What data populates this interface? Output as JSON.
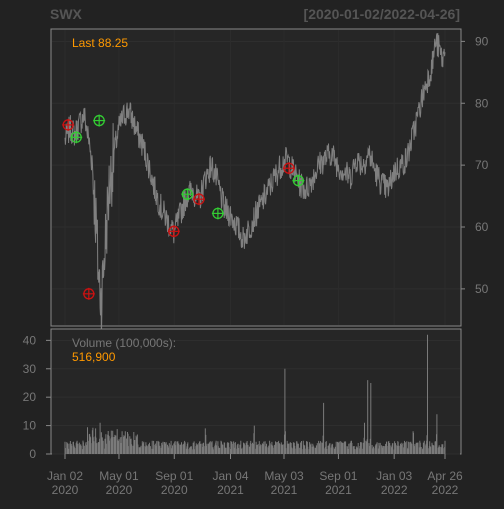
{
  "chart_data": {
    "type": "line",
    "title_left": "SWX",
    "title_right": "[2020-01-02/2022-04-26]",
    "price_panel": {
      "last_label": "Last 88.25",
      "ylim": [
        44,
        92
      ],
      "y_ticks": [
        50,
        60,
        70,
        80,
        90
      ],
      "series": [
        {
          "x": "2020-01-02",
          "y": 74
        },
        {
          "x": "2020-01-13",
          "y": 76
        },
        {
          "x": "2020-01-24",
          "y": 75
        },
        {
          "x": "2020-02-05",
          "y": 77
        },
        {
          "x": "2020-02-14",
          "y": 78
        },
        {
          "x": "2020-02-24",
          "y": 74
        },
        {
          "x": "2020-03-03",
          "y": 70
        },
        {
          "x": "2020-03-10",
          "y": 62
        },
        {
          "x": "2020-03-16",
          "y": 53
        },
        {
          "x": "2020-03-23",
          "y": 48
        },
        {
          "x": "2020-03-30",
          "y": 56
        },
        {
          "x": "2020-04-09",
          "y": 66
        },
        {
          "x": "2020-04-20",
          "y": 72
        },
        {
          "x": "2020-05-01",
          "y": 76
        },
        {
          "x": "2020-05-12",
          "y": 78
        },
        {
          "x": "2020-05-22",
          "y": 79
        },
        {
          "x": "2020-06-02",
          "y": 77
        },
        {
          "x": "2020-06-12",
          "y": 75
        },
        {
          "x": "2020-06-24",
          "y": 73
        },
        {
          "x": "2020-07-06",
          "y": 70
        },
        {
          "x": "2020-07-20",
          "y": 66
        },
        {
          "x": "2020-08-03",
          "y": 63
        },
        {
          "x": "2020-08-17",
          "y": 61
        },
        {
          "x": "2020-08-31",
          "y": 59
        },
        {
          "x": "2020-09-14",
          "y": 62
        },
        {
          "x": "2020-09-28",
          "y": 65
        },
        {
          "x": "2020-10-12",
          "y": 66
        },
        {
          "x": "2020-10-26",
          "y": 64
        },
        {
          "x": "2020-11-09",
          "y": 68
        },
        {
          "x": "2020-11-23",
          "y": 70
        },
        {
          "x": "2020-12-07",
          "y": 67
        },
        {
          "x": "2020-12-21",
          "y": 63
        },
        {
          "x": "2021-01-04",
          "y": 62
        },
        {
          "x": "2021-01-19",
          "y": 60
        },
        {
          "x": "2021-02-01",
          "y": 58
        },
        {
          "x": "2021-02-16",
          "y": 60
        },
        {
          "x": "2021-03-01",
          "y": 62
        },
        {
          "x": "2021-03-15",
          "y": 64
        },
        {
          "x": "2021-03-29",
          "y": 66
        },
        {
          "x": "2021-04-12",
          "y": 68
        },
        {
          "x": "2021-04-26",
          "y": 70
        },
        {
          "x": "2021-05-10",
          "y": 71
        },
        {
          "x": "2021-05-24",
          "y": 69
        },
        {
          "x": "2021-06-07",
          "y": 67
        },
        {
          "x": "2021-06-21",
          "y": 66
        },
        {
          "x": "2021-07-06",
          "y": 68
        },
        {
          "x": "2021-07-19",
          "y": 70
        },
        {
          "x": "2021-08-02",
          "y": 71
        },
        {
          "x": "2021-08-16",
          "y": 72
        },
        {
          "x": "2021-08-30",
          "y": 70
        },
        {
          "x": "2021-09-13",
          "y": 69
        },
        {
          "x": "2021-09-27",
          "y": 68
        },
        {
          "x": "2021-10-11",
          "y": 71
        },
        {
          "x": "2021-10-25",
          "y": 70
        },
        {
          "x": "2021-11-08",
          "y": 72
        },
        {
          "x": "2021-11-22",
          "y": 69
        },
        {
          "x": "2021-12-06",
          "y": 67
        },
        {
          "x": "2021-12-20",
          "y": 66
        },
        {
          "x": "2022-01-03",
          "y": 69
        },
        {
          "x": "2022-01-18",
          "y": 70
        },
        {
          "x": "2022-01-31",
          "y": 71
        },
        {
          "x": "2022-02-14",
          "y": 75
        },
        {
          "x": "2022-02-28",
          "y": 79
        },
        {
          "x": "2022-03-14",
          "y": 83
        },
        {
          "x": "2022-03-28",
          "y": 86
        },
        {
          "x": "2022-04-05",
          "y": 90
        },
        {
          "x": "2022-04-12",
          "y": 89
        },
        {
          "x": "2022-04-20",
          "y": 87
        },
        {
          "x": "2022-04-26",
          "y": 88.25
        }
      ],
      "buy_signals": [
        {
          "x": "2020-01-27",
          "y": 74.5
        },
        {
          "x": "2020-03-18",
          "y": 77.2
        },
        {
          "x": "2020-09-30",
          "y": 65.3
        },
        {
          "x": "2020-12-07",
          "y": 62.2
        },
        {
          "x": "2021-06-04",
          "y": 67.5
        }
      ],
      "sell_signals": [
        {
          "x": "2020-01-09",
          "y": 76.5
        },
        {
          "x": "2020-02-24",
          "y": 49.2
        },
        {
          "x": "2020-08-31",
          "y": 59.3
        },
        {
          "x": "2020-10-26",
          "y": 64.5
        },
        {
          "x": "2021-05-14",
          "y": 69.5
        }
      ],
      "colors": {
        "line": "#808080",
        "buy": "#33cc33",
        "sell": "#cc1111",
        "label": "#ff9900"
      }
    },
    "volume_panel": {
      "label": "Volume (100,000s):",
      "last_value": "516,900",
      "ylim": [
        0,
        44
      ],
      "y_ticks": [
        0,
        10,
        20,
        30,
        40
      ],
      "spikes": [
        {
          "x": "2020-03-10",
          "y": 9
        },
        {
          "x": "2020-03-20",
          "y": 11
        },
        {
          "x": "2020-05-15",
          "y": 8
        },
        {
          "x": "2020-11-09",
          "y": 9
        },
        {
          "x": "2021-02-26",
          "y": 10
        },
        {
          "x": "2021-05-05",
          "y": 30
        },
        {
          "x": "2021-07-30",
          "y": 18
        },
        {
          "x": "2021-10-29",
          "y": 11
        },
        {
          "x": "2021-11-05",
          "y": 26
        },
        {
          "x": "2021-11-12",
          "y": 25
        },
        {
          "x": "2022-02-14",
          "y": 8
        },
        {
          "x": "2022-03-18",
          "y": 42
        },
        {
          "x": "2022-04-08",
          "y": 14
        }
      ]
    },
    "x_ticks": [
      {
        "date": "2020-01-02",
        "line1": "Jan 02",
        "line2": "2020"
      },
      {
        "date": "2020-05-01",
        "line1": "May 01",
        "line2": "2020"
      },
      {
        "date": "2020-09-01",
        "line1": "Sep 01",
        "line2": "2020"
      },
      {
        "date": "2021-01-04",
        "line1": "Jan 04",
        "line2": "2021"
      },
      {
        "date": "2021-05-03",
        "line1": "May 03",
        "line2": "2021"
      },
      {
        "date": "2021-09-01",
        "line1": "Sep 01",
        "line2": "2021"
      },
      {
        "date": "2022-01-03",
        "line1": "Jan 03",
        "line2": "2022"
      },
      {
        "date": "2022-04-26",
        "line1": "Apr 26",
        "line2": "2022"
      }
    ]
  }
}
